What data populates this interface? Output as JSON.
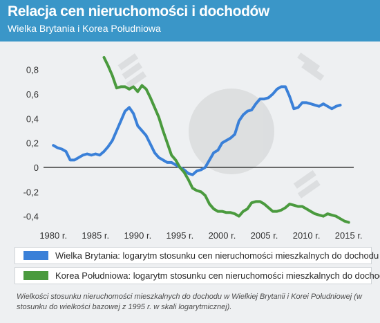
{
  "title": "Relacja cen nieruchomości i dochodów",
  "subtitle": "Wielka Brytania i Korea Południowa",
  "note": "Wielkości stosunku nieruchomości mieszkalnych do dochodu w Wielkiej Brytanii i Korei Południowej (w stosunku do wielkości bazowej z 1995 r. w skali logarytmicznej).",
  "chart_data": {
    "type": "line",
    "title": "Relacja cen nieruchomości i dochodów",
    "subtitle": "Wielka Brytania i Korea Południowa",
    "xlabel": "",
    "ylabel": "",
    "xlim": [
      1979,
      2015.6
    ],
    "ylim": [
      -0.47,
      0.9
    ],
    "xticks": [
      1980,
      1985,
      1990,
      1995,
      2000,
      2005,
      2010,
      2015
    ],
    "xtick_labels": [
      "1980 r.",
      "1985 r.",
      "1990 r.",
      "1995 r.",
      "2000 r.",
      "2005 r.",
      "2010 r.",
      "2015 r."
    ],
    "yticks": [
      -0.4,
      -0.2,
      0,
      0.2,
      0.4,
      0.6,
      0.8
    ],
    "ytick_labels": [
      "-0,4",
      "-0,2",
      "0",
      "0,2",
      "0,4",
      "0,6",
      "0,8"
    ],
    "zero_line": true,
    "grid": false,
    "legend_position": "bottom",
    "series": [
      {
        "name": "Wielka Brytania: logarytm stosunku cen nieruchomości mieszkalnych do dochodu",
        "color": "#3a80d8",
        "x": [
          1980,
          1980.5,
          1981,
          1981.5,
          1982,
          1982.5,
          1983,
          1983.5,
          1984,
          1984.5,
          1985,
          1985.5,
          1986,
          1986.5,
          1987,
          1987.5,
          1988,
          1988.5,
          1989,
          1989.5,
          1990,
          1990.5,
          1991,
          1991.5,
          1992,
          1992.5,
          1993,
          1993.5,
          1994,
          1994.5,
          1995,
          1995.5,
          1996,
          1996.5,
          1997,
          1997.5,
          1998,
          1998.5,
          1999,
          1999.5,
          2000,
          2000.5,
          2001,
          2001.5,
          2002,
          2002.5,
          2003,
          2003.5,
          2004,
          2004.5,
          2005,
          2005.5,
          2006,
          2006.5,
          2007,
          2007.5,
          2008,
          2008.5,
          2009,
          2009.5,
          2010,
          2010.5,
          2011,
          2011.5,
          2012,
          2012.5,
          2013,
          2013.5,
          2014
        ],
        "values": [
          0.18,
          0.16,
          0.15,
          0.13,
          0.06,
          0.06,
          0.08,
          0.1,
          0.11,
          0.1,
          0.11,
          0.1,
          0.13,
          0.17,
          0.22,
          0.3,
          0.38,
          0.46,
          0.49,
          0.44,
          0.34,
          0.3,
          0.26,
          0.19,
          0.12,
          0.08,
          0.06,
          0.04,
          0.04,
          0.02,
          0.0,
          -0.02,
          -0.05,
          -0.06,
          -0.03,
          -0.02,
          0.0,
          0.06,
          0.12,
          0.14,
          0.2,
          0.22,
          0.24,
          0.27,
          0.38,
          0.43,
          0.46,
          0.47,
          0.52,
          0.56,
          0.56,
          0.57,
          0.6,
          0.64,
          0.66,
          0.66,
          0.58,
          0.48,
          0.49,
          0.53,
          0.53,
          0.52,
          0.51,
          0.5,
          0.52,
          0.5,
          0.48,
          0.5,
          0.51
        ]
      },
      {
        "name": "Korea Południowa: logarytm stosunku cen nieruchomości mieszkalnych do dochodu",
        "color": "#4a9a3e",
        "x": [
          1986,
          1986.5,
          1987,
          1987.5,
          1988,
          1988.5,
          1989,
          1989.5,
          1990,
          1990.5,
          1991,
          1991.5,
          1992,
          1992.5,
          1993,
          1993.5,
          1994,
          1994.5,
          1995,
          1995.5,
          1996,
          1996.5,
          1997,
          1997.5,
          1998,
          1998.5,
          1999,
          1999.5,
          2000,
          2000.5,
          2001,
          2001.5,
          2002,
          2002.5,
          2003,
          2003.5,
          2004,
          2004.5,
          2005,
          2005.5,
          2006,
          2006.5,
          2007,
          2007.5,
          2008,
          2008.5,
          2009,
          2009.5,
          2010,
          2010.5,
          2011,
          2011.5,
          2012,
          2012.5,
          2013,
          2013.5,
          2014,
          2014.5,
          2015
        ],
        "values": [
          0.9,
          0.83,
          0.75,
          0.65,
          0.66,
          0.66,
          0.64,
          0.66,
          0.62,
          0.67,
          0.64,
          0.57,
          0.49,
          0.41,
          0.3,
          0.2,
          0.1,
          0.06,
          0.0,
          -0.04,
          -0.1,
          -0.17,
          -0.19,
          -0.2,
          -0.23,
          -0.3,
          -0.34,
          -0.36,
          -0.36,
          -0.37,
          -0.37,
          -0.38,
          -0.4,
          -0.36,
          -0.34,
          -0.29,
          -0.28,
          -0.28,
          -0.3,
          -0.33,
          -0.36,
          -0.36,
          -0.35,
          -0.33,
          -0.3,
          -0.31,
          -0.32,
          -0.32,
          -0.34,
          -0.36,
          -0.38,
          -0.39,
          -0.4,
          -0.38,
          -0.39,
          -0.4,
          -0.42,
          -0.44,
          -0.45
        ]
      }
    ]
  }
}
